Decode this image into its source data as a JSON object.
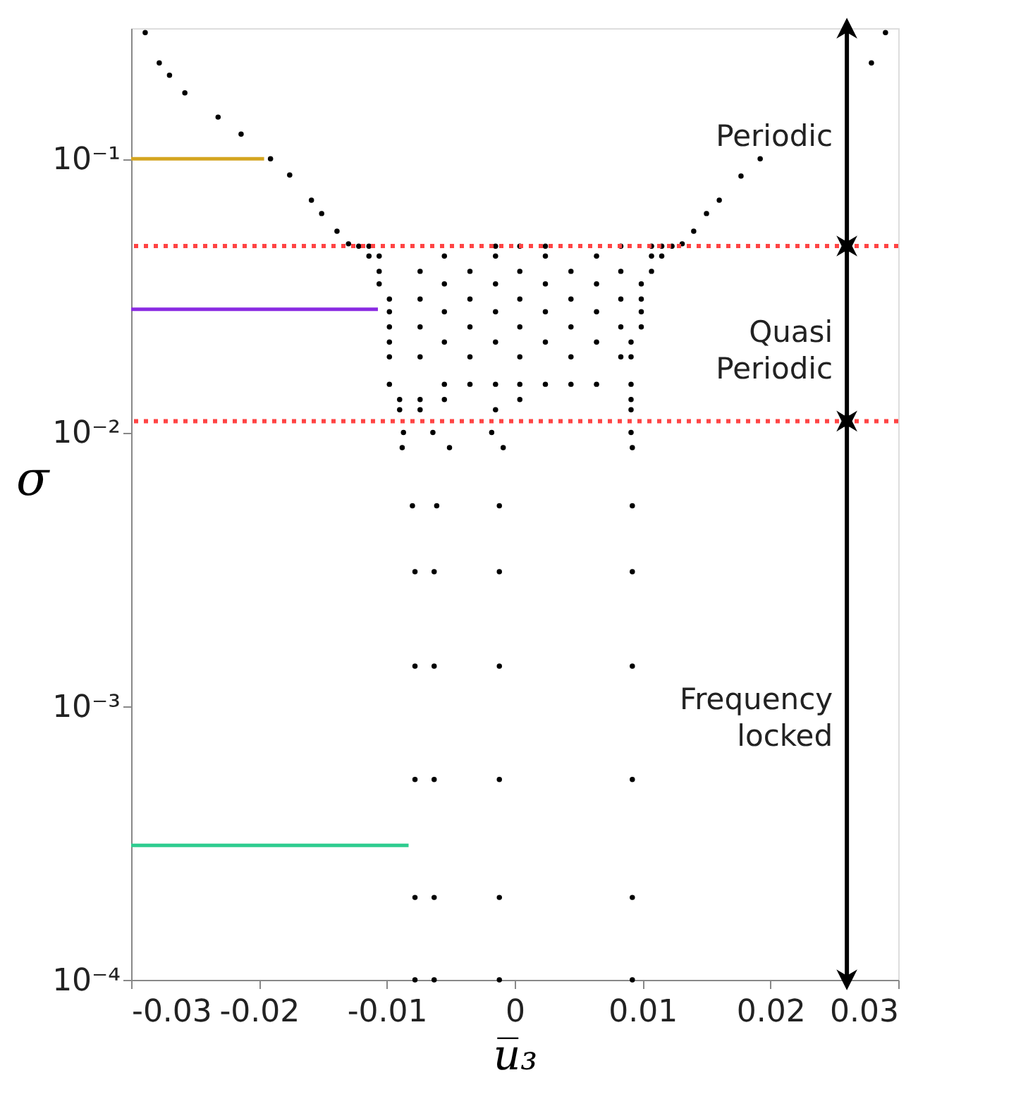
{
  "chart_data": {
    "type": "scatter",
    "xlabel": "u̅₃",
    "ylabel": "σ",
    "xlim": [
      -0.03,
      0.03
    ],
    "xticks": [
      -0.03,
      -0.02,
      -0.01,
      0,
      0.01,
      0.02,
      0.03
    ],
    "ylim": [
      0.0001,
      0.3
    ],
    "log": "y",
    "yticks": [
      {
        "value": 0.0001,
        "label": "10⁻⁴"
      },
      {
        "value": 0.001,
        "label": "10⁻³"
      },
      {
        "value": 0.01,
        "label": "10⁻²"
      },
      {
        "value": 0.1,
        "label": "10⁻¹"
      }
    ],
    "grid": false,
    "series": [
      {
        "color": "#000000",
        "marker": "circle",
        "x": [
          -0.0289,
          -0.0278,
          -0.027,
          -0.0258,
          -0.0232,
          -0.0214,
          -0.0191,
          -0.0176,
          -0.0159,
          -0.0151,
          -0.0139,
          -0.013,
          0.029,
          0.0279,
          0.0192,
          0.0177,
          0.016,
          0.015,
          0.014,
          0.0131,
          -0.0122,
          -0.0114,
          -0.0015,
          0.0004,
          0.0024,
          0.0083,
          0.0107,
          0.0115,
          0.0123,
          -0.0114,
          -0.0106,
          -0.0055,
          -0.0015,
          0.0024,
          0.0064,
          0.0107,
          0.0115,
          -0.0106,
          -0.0074,
          -0.0035,
          0.0004,
          0.0044,
          0.0083,
          0.0107,
          -0.0106,
          -0.0055,
          -0.0015,
          0.0024,
          0.0064,
          0.0099,
          -0.0098,
          -0.0074,
          -0.0035,
          0.0004,
          0.0044,
          0.0083,
          0.0099,
          -0.0098,
          -0.0055,
          -0.0015,
          0.0024,
          0.0064,
          0.0099,
          -0.0098,
          -0.0074,
          -0.0035,
          0.0004,
          0.0044,
          0.0083,
          0.0099,
          -0.0098,
          -0.0055,
          -0.0015,
          0.0024,
          0.0064,
          0.0091,
          -0.0098,
          -0.0074,
          -0.0035,
          0.0004,
          0.0044,
          0.0083,
          0.0091,
          -0.0098,
          -0.0055,
          -0.0035,
          -0.0015,
          0.0004,
          0.0024,
          0.0044,
          0.0064,
          0.0091,
          -0.009,
          -0.0074,
          -0.0055,
          0.0004,
          0.0091,
          -0.009,
          -0.0074,
          -0.0015,
          0.0091,
          -0.0087,
          -0.0064,
          -0.0018,
          0.0091,
          -0.0088,
          -0.0051,
          -0.0009,
          0.0092,
          -0.008,
          -0.0061,
          -0.0012,
          0.0092,
          -0.0078,
          -0.0063,
          -0.0012,
          0.0092,
          -0.0078,
          -0.0063,
          -0.0012,
          0.0092,
          -0.0078,
          -0.0063,
          -0.0012,
          0.0092,
          -0.0078,
          -0.0063,
          -0.0012,
          0.0092,
          -0.0078,
          -0.0063,
          -0.0012,
          0.0092
        ],
        "values": [
          0.289,
          0.224,
          0.202,
          0.174,
          0.142,
          0.123,
          0.1,
          0.0873,
          0.0706,
          0.0631,
          0.0544,
          0.0489,
          0.289,
          0.224,
          0.1,
          0.0865,
          0.0706,
          0.0631,
          0.0544,
          0.0489,
          0.0479,
          0.0479,
          0.0479,
          0.0479,
          0.0479,
          0.0479,
          0.0479,
          0.0479,
          0.0479,
          0.0441,
          0.0441,
          0.0441,
          0.0441,
          0.0441,
          0.0441,
          0.0441,
          0.0441,
          0.0388,
          0.0388,
          0.0388,
          0.0388,
          0.0388,
          0.0388,
          0.0388,
          0.0349,
          0.0349,
          0.0349,
          0.0349,
          0.0349,
          0.0349,
          0.0307,
          0.0307,
          0.0307,
          0.0307,
          0.0307,
          0.0307,
          0.0307,
          0.0276,
          0.0276,
          0.0276,
          0.0276,
          0.0276,
          0.0276,
          0.0243,
          0.0243,
          0.0243,
          0.0243,
          0.0243,
          0.0243,
          0.0243,
          0.0214,
          0.0214,
          0.0214,
          0.0214,
          0.0214,
          0.0214,
          0.0189,
          0.0189,
          0.0189,
          0.0189,
          0.0189,
          0.0189,
          0.0189,
          0.015,
          0.015,
          0.015,
          0.015,
          0.015,
          0.015,
          0.015,
          0.015,
          0.015,
          0.0132,
          0.0132,
          0.0132,
          0.0132,
          0.0132,
          0.0121,
          0.0121,
          0.0121,
          0.0121,
          0.01,
          0.01,
          0.01,
          0.01,
          0.0088,
          0.0088,
          0.0088,
          0.0088,
          0.0054,
          0.0054,
          0.0054,
          0.0054,
          0.0031,
          0.0031,
          0.0031,
          0.0031,
          0.0014,
          0.0014,
          0.0014,
          0.0014,
          0.00054,
          0.00054,
          0.00054,
          0.00054,
          0.0002,
          0.0002,
          0.0002,
          0.0002,
          0.0001,
          0.0001,
          0.0001,
          0.0001
        ]
      },
      {
        "type": "line",
        "color": "#d4a520",
        "x": [
          -0.03,
          -0.0196
        ],
        "values": [
          0.1,
          0.1
        ]
      },
      {
        "type": "line",
        "color": "#8a2be2",
        "x": [
          -0.03,
          -0.0107
        ],
        "values": [
          0.0282,
          0.0282
        ]
      },
      {
        "type": "line",
        "color": "#2ecc8f",
        "x": [
          -0.03,
          -0.0083
        ],
        "values": [
          0.00031,
          0.00031
        ]
      }
    ],
    "ref_lines": [
      {
        "axis": "y",
        "value": 0.048,
        "color": "#ff4444",
        "line_style": "dotted"
      },
      {
        "axis": "y",
        "value": 0.011,
        "color": "#ff4444",
        "line_style": "dotted"
      }
    ],
    "annotations": [
      "Periodic",
      "Quasi Periodic",
      "Frequency locked"
    ]
  }
}
